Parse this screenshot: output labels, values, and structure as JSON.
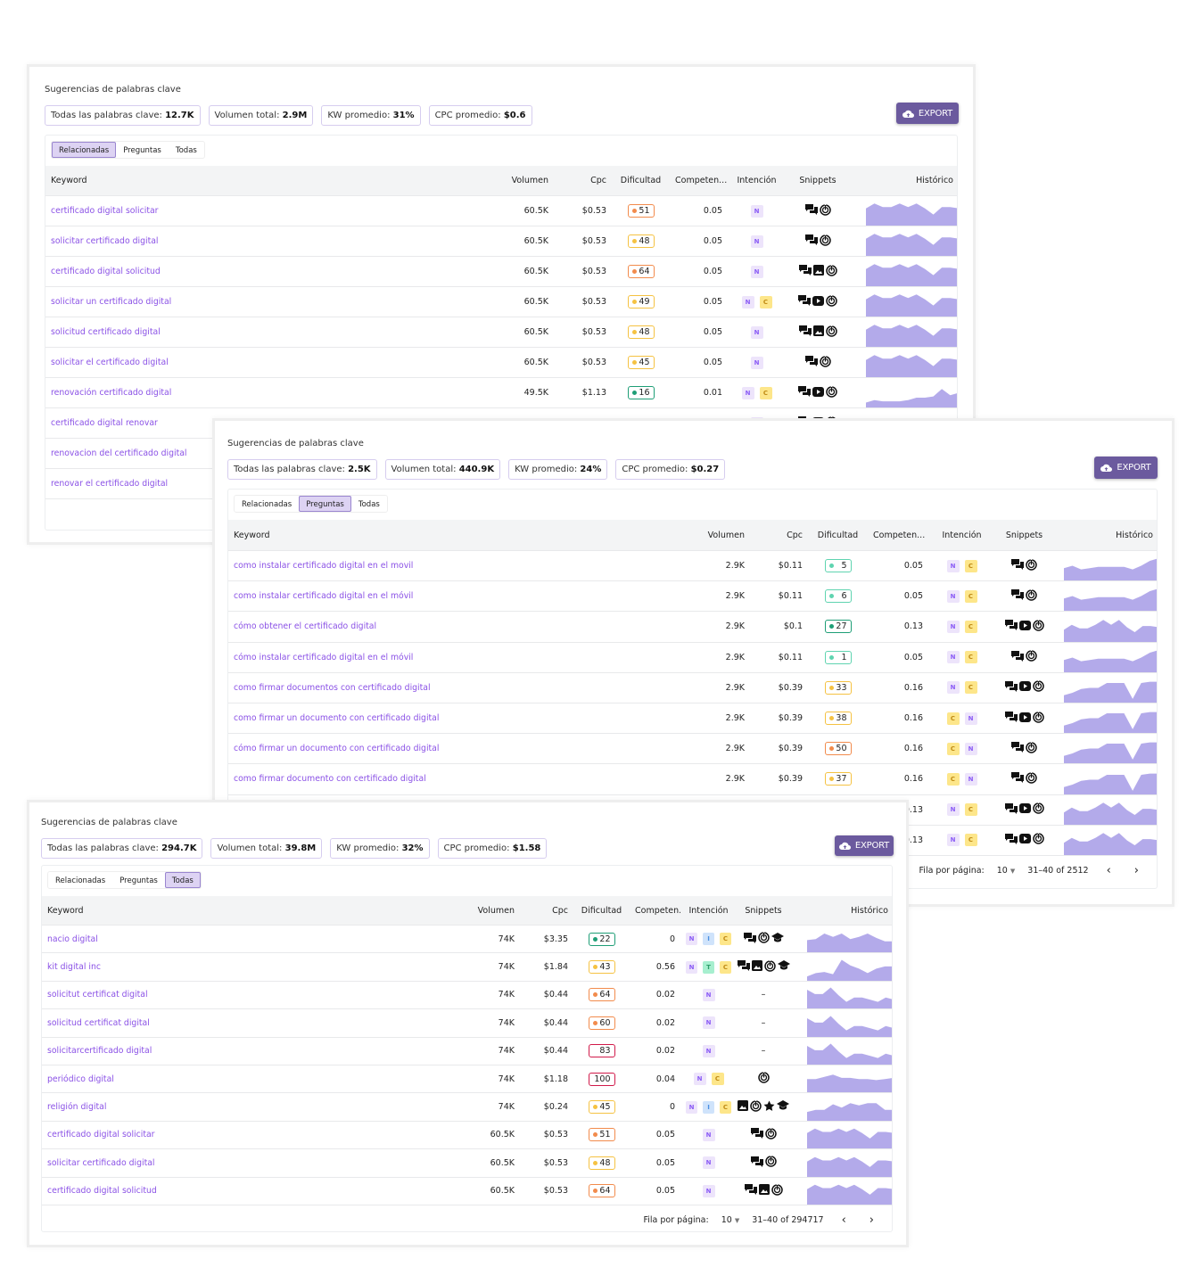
{
  "colors": {
    "accent": "#8b52e6",
    "export_bg": "#6b5a9e",
    "tab_active": "#ddd3f3",
    "sparkline": "#b3aaea"
  },
  "patterns": {
    "a": [
      0.7,
      0.9,
      0.75,
      0.75,
      0.9,
      0.75,
      0.9,
      0.7,
      0.45,
      0.75,
      0.75,
      0.7
    ],
    "b": [
      0.2,
      0.3,
      0.25,
      0.25,
      0.25,
      0.3,
      0.4,
      0.4,
      0.45,
      0.75,
      0.5,
      0.6
    ],
    "c": [
      0.5,
      0.6,
      0.45,
      0.5,
      0.55,
      0.55,
      0.55,
      0.55,
      0.45,
      0.6,
      0.8,
      0.9
    ],
    "d": [
      0.5,
      0.7,
      0.55,
      0.55,
      0.7,
      0.9,
      0.7,
      0.9,
      0.6,
      0.4,
      0.65,
      0.65,
      0.6
    ],
    "e": [
      0.3,
      0.4,
      0.55,
      0.6,
      0.6,
      0.8,
      0.8,
      0.8,
      0.15,
      0.8,
      0.85,
      0.85
    ],
    "f": [
      0.55,
      0.6,
      0.85,
      0.7,
      0.85,
      0.6,
      0.7,
      0.85,
      0.65,
      0.5,
      0.5
    ],
    "g": [
      0.2,
      0.35,
      0.4,
      0.3,
      0.95,
      0.7,
      0.55,
      0.35,
      0.55,
      0.65,
      0.65
    ],
    "h": [
      0.85,
      0.65,
      0.65,
      0.95,
      0.6,
      0.3,
      0.5,
      0.5,
      0.4,
      0.3,
      0.5,
      0.4
    ],
    "i": [
      0.6,
      0.6,
      0.7,
      0.8,
      0.65,
      0.65,
      0.6,
      0.6,
      0.55,
      0.6,
      0.65
    ],
    "j": [
      0.4,
      0.5,
      0.5,
      0.75,
      0.6,
      0.8,
      0.7,
      0.8,
      0.8,
      0.5,
      0.5
    ]
  },
  "panels": [
    {
      "title": "Sugerencias de palabras clave",
      "stats": [
        {
          "label": "Todas las palabras clave:",
          "value": "12.7K"
        },
        {
          "label": "Volumen total:",
          "value": "2.9M"
        },
        {
          "label": "KW promedio:",
          "value": "31%"
        },
        {
          "label": "CPC promedio:",
          "value": "$0.6"
        }
      ],
      "export_label": "EXPORT",
      "tabs": [
        "Relacionadas",
        "Preguntas",
        "Todas"
      ],
      "active_tab": 0,
      "columns": [
        "Keyword",
        "Volumen",
        "Cpc",
        "Dificultad",
        "Competen...",
        "Intención",
        "Snippets",
        "Histórico"
      ],
      "rows": [
        {
          "keyword": "certificado digital solicitar",
          "volume": "60.5K",
          "cpc": "$0.53",
          "difficulty": 51,
          "competition": "0.05",
          "intent": [
            "N"
          ],
          "snippets": [
            "chat",
            "ads"
          ],
          "trend": "a"
        },
        {
          "keyword": "solicitar certificado digital",
          "volume": "60.5K",
          "cpc": "$0.53",
          "difficulty": 48,
          "competition": "0.05",
          "intent": [
            "N"
          ],
          "snippets": [
            "chat",
            "ads"
          ],
          "trend": "a"
        },
        {
          "keyword": "certificado digital solicitud",
          "volume": "60.5K",
          "cpc": "$0.53",
          "difficulty": 64,
          "competition": "0.05",
          "intent": [
            "N"
          ],
          "snippets": [
            "chat",
            "image",
            "ads"
          ],
          "trend": "a"
        },
        {
          "keyword": "solicitar un certificado digital",
          "volume": "60.5K",
          "cpc": "$0.53",
          "difficulty": 49,
          "competition": "0.05",
          "intent": [
            "N",
            "C"
          ],
          "snippets": [
            "chat",
            "video",
            "ads"
          ],
          "trend": "a"
        },
        {
          "keyword": "solicitud certificado digital",
          "volume": "60.5K",
          "cpc": "$0.53",
          "difficulty": 48,
          "competition": "0.05",
          "intent": [
            "N"
          ],
          "snippets": [
            "chat",
            "image",
            "ads"
          ],
          "trend": "a"
        },
        {
          "keyword": "solicitar el certificado digital",
          "volume": "60.5K",
          "cpc": "$0.53",
          "difficulty": 45,
          "competition": "0.05",
          "intent": [
            "N"
          ],
          "snippets": [
            "chat",
            "ads"
          ],
          "trend": "a"
        },
        {
          "keyword": "renovación certificado digital",
          "volume": "49.5K",
          "cpc": "$1.13",
          "difficulty": 16,
          "competition": "0.01",
          "intent": [
            "N",
            "C"
          ],
          "snippets": [
            "chat",
            "video",
            "ads"
          ],
          "trend": "b"
        },
        {
          "keyword": "certificado digital renovar",
          "intent": [
            "N"
          ],
          "snippets": [
            "chat",
            "video",
            "ads"
          ],
          "trend": "b"
        },
        {
          "keyword": "renovacion del certificado digital"
        },
        {
          "keyword": "renovar el certificado digital"
        }
      ]
    },
    {
      "title": "Sugerencias de palabras clave",
      "stats": [
        {
          "label": "Todas las palabras clave:",
          "value": "2.5K"
        },
        {
          "label": "Volumen total:",
          "value": "440.9K"
        },
        {
          "label": "KW promedio:",
          "value": "24%"
        },
        {
          "label": "CPC promedio:",
          "value": "$0.27"
        }
      ],
      "export_label": "EXPORT",
      "tabs": [
        "Relacionadas",
        "Preguntas",
        "Todas"
      ],
      "active_tab": 1,
      "columns": [
        "Keyword",
        "Volumen",
        "Cpc",
        "Dificultad",
        "Competen...",
        "Intención",
        "Snippets",
        "Histórico"
      ],
      "rows": [
        {
          "keyword": "como instalar certificado digital en el movil",
          "volume": "2.9K",
          "cpc": "$0.11",
          "difficulty": 5,
          "competition": "0.05",
          "intent": [
            "N",
            "C"
          ],
          "snippets": [
            "chat",
            "ads"
          ],
          "trend": "c"
        },
        {
          "keyword": "como instalar certificado digital en el móvil",
          "volume": "2.9K",
          "cpc": "$0.11",
          "difficulty": 6,
          "competition": "0.05",
          "intent": [
            "N",
            "C"
          ],
          "snippets": [
            "chat",
            "ads"
          ],
          "trend": "c"
        },
        {
          "keyword": "cómo obtener el certificado digital",
          "volume": "2.9K",
          "cpc": "$0.1",
          "difficulty": 27,
          "competition": "0.13",
          "intent": [
            "N",
            "C"
          ],
          "snippets": [
            "chat",
            "video",
            "ads"
          ],
          "trend": "d"
        },
        {
          "keyword": "cómo instalar certificado digital en el móvil",
          "volume": "2.9K",
          "cpc": "$0.11",
          "difficulty": 1,
          "competition": "0.05",
          "intent": [
            "N",
            "C"
          ],
          "snippets": [
            "chat",
            "ads"
          ],
          "trend": "c"
        },
        {
          "keyword": "como firmar documentos con certificado digital",
          "volume": "2.9K",
          "cpc": "$0.39",
          "difficulty": 33,
          "competition": "0.16",
          "intent": [
            "N",
            "C"
          ],
          "snippets": [
            "chat",
            "video",
            "ads"
          ],
          "trend": "e"
        },
        {
          "keyword": "como firmar un documento con certificado digital",
          "volume": "2.9K",
          "cpc": "$0.39",
          "difficulty": 38,
          "competition": "0.16",
          "intent": [
            "C",
            "N"
          ],
          "snippets": [
            "chat",
            "video",
            "ads"
          ],
          "trend": "e"
        },
        {
          "keyword": "cómo firmar un documento con certificado digital",
          "volume": "2.9K",
          "cpc": "$0.39",
          "difficulty": 50,
          "competition": "0.16",
          "intent": [
            "C",
            "N"
          ],
          "snippets": [
            "chat",
            "ads"
          ],
          "trend": "e"
        },
        {
          "keyword": "como firmar documento con certificado digital",
          "volume": "2.9K",
          "cpc": "$0.39",
          "difficulty": 37,
          "competition": "0.16",
          "intent": [
            "C",
            "N"
          ],
          "snippets": [
            "chat",
            "ads"
          ],
          "trend": "e"
        },
        {
          "competition": "0.13",
          "intent": [
            "N",
            "C"
          ],
          "snippets": [
            "chat",
            "video",
            "ads"
          ],
          "trend": "d"
        },
        {
          "competition": "0.13",
          "intent": [
            "N",
            "C"
          ],
          "snippets": [
            "chat",
            "video",
            "ads"
          ],
          "trend": "d"
        }
      ],
      "footer": {
        "rows_label": "Fila por página:",
        "rows_value": "10",
        "range": "31–40 of 2512"
      }
    },
    {
      "title": "Sugerencias de palabras clave",
      "stats": [
        {
          "label": "Todas las palabras clave:",
          "value": "294.7K"
        },
        {
          "label": "Volumen total:",
          "value": "39.8M"
        },
        {
          "label": "KW promedio:",
          "value": "32%"
        },
        {
          "label": "CPC promedio:",
          "value": "$1.58"
        }
      ],
      "export_label": "EXPORT",
      "tabs": [
        "Relacionadas",
        "Preguntas",
        "Todas"
      ],
      "active_tab": 2,
      "columns": [
        "Keyword",
        "Volumen",
        "Cpc",
        "Dificultad",
        "Competen...",
        "Intención",
        "Snippets",
        "Histórico"
      ],
      "rows": [
        {
          "keyword": "nacio digital",
          "volume": "74K",
          "cpc": "$3.35",
          "difficulty": 22,
          "competition": "0",
          "intent": [
            "N",
            "I",
            "C"
          ],
          "snippets": [
            "chat",
            "ads",
            "course"
          ],
          "trend": "f"
        },
        {
          "keyword": "kit digital inc",
          "volume": "74K",
          "cpc": "$1.84",
          "difficulty": 43,
          "competition": "0.56",
          "intent": [
            "N",
            "T",
            "C"
          ],
          "snippets": [
            "chat",
            "image",
            "ads",
            "course"
          ],
          "trend": "g"
        },
        {
          "keyword": "solicitut certificat digital",
          "volume": "74K",
          "cpc": "$0.44",
          "difficulty": 64,
          "competition": "0.02",
          "intent": [
            "N"
          ],
          "snippets": [],
          "snippet_empty": "–",
          "trend": "h"
        },
        {
          "keyword": "solicitud certificat digital",
          "volume": "74K",
          "cpc": "$0.44",
          "difficulty": 60,
          "competition": "0.02",
          "intent": [
            "N"
          ],
          "snippets": [],
          "snippet_empty": "–",
          "trend": "h"
        },
        {
          "keyword": "solicitarcertificado digital",
          "volume": "74K",
          "cpc": "$0.44",
          "difficulty": 83,
          "competition": "0.02",
          "intent": [
            "N"
          ],
          "snippets": [],
          "snippet_empty": "–",
          "trend": "h"
        },
        {
          "keyword": "periódico digital",
          "volume": "74K",
          "cpc": "$1.18",
          "difficulty": 100,
          "competition": "0.04",
          "intent": [
            "N",
            "C"
          ],
          "snippets": [
            "ads"
          ],
          "trend": "i"
        },
        {
          "keyword": "religión digital",
          "volume": "74K",
          "cpc": "$0.24",
          "difficulty": 45,
          "competition": "0",
          "intent": [
            "N",
            "I",
            "C"
          ],
          "snippets": [
            "image",
            "ads",
            "star",
            "course"
          ],
          "trend": "j"
        },
        {
          "keyword": "certificado digital solicitar",
          "volume": "60.5K",
          "cpc": "$0.53",
          "difficulty": 51,
          "competition": "0.05",
          "intent": [
            "N"
          ],
          "snippets": [
            "chat",
            "ads"
          ],
          "trend": "a"
        },
        {
          "keyword": "solicitar certificado digital",
          "volume": "60.5K",
          "cpc": "$0.53",
          "difficulty": 48,
          "competition": "0.05",
          "intent": [
            "N"
          ],
          "snippets": [
            "chat",
            "ads"
          ],
          "trend": "a"
        },
        {
          "keyword": "certificado digital solicitud",
          "volume": "60.5K",
          "cpc": "$0.53",
          "difficulty": 64,
          "competition": "0.05",
          "intent": [
            "N"
          ],
          "snippets": [
            "chat",
            "image",
            "ads"
          ],
          "trend": "a"
        }
      ],
      "footer": {
        "rows_label": "Fila por página:",
        "rows_value": "10",
        "range": "31–40 of 294717"
      }
    }
  ]
}
